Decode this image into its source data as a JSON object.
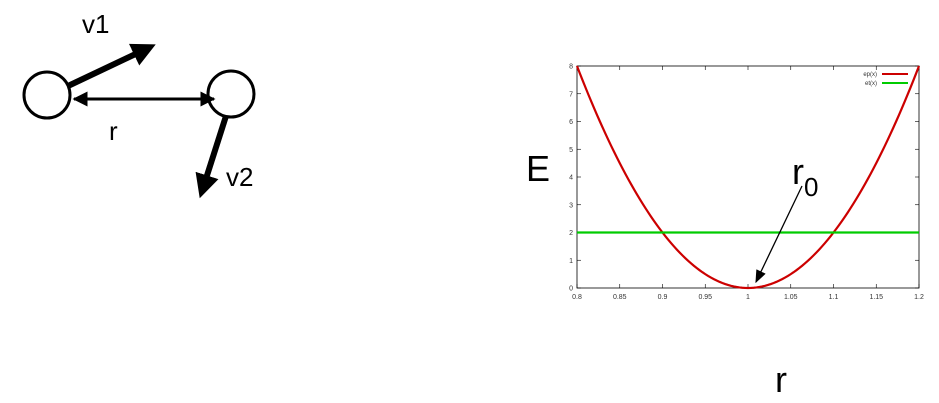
{
  "diagram": {
    "v1_label": "v1",
    "v2_label": "v2",
    "r_label": "r"
  },
  "chart_data": {
    "type": "line",
    "ylabel": "E",
    "xlabel": "r",
    "annotation": {
      "text_main": "r",
      "text_sub": "0",
      "target_x": 1.0,
      "target_y": 0.0
    },
    "xlim": [
      0.8,
      1.2
    ],
    "ylim": [
      0,
      8
    ],
    "xticks": [
      "0.8",
      "0.85",
      "0.9",
      "0.95",
      "1",
      "1.05",
      "1.1",
      "1.15",
      "1.2"
    ],
    "xtick_values": [
      0.8,
      0.85,
      0.9,
      0.95,
      1.0,
      1.05,
      1.1,
      1.15,
      1.2
    ],
    "yticks": [
      "0",
      "1",
      "2",
      "3",
      "4",
      "5",
      "6",
      "7",
      "8"
    ],
    "ytick_values": [
      0,
      1,
      2,
      3,
      4,
      5,
      6,
      7,
      8
    ],
    "grid": false,
    "legend_position": "top-right",
    "series": [
      {
        "name": "ep(x)",
        "color": "#cc0000",
        "kind": "parabola",
        "center": 1.0,
        "coef": 200,
        "x": [
          0.8,
          0.85,
          0.9,
          0.95,
          1.0,
          1.05,
          1.1,
          1.15,
          1.2
        ],
        "values": [
          8,
          4.5,
          2,
          0.5,
          0,
          0.5,
          2,
          4.5,
          8
        ]
      },
      {
        "name": "et(x)",
        "color": "#00cc00",
        "kind": "constant",
        "x": [
          0.8,
          1.2
        ],
        "values": [
          2,
          2
        ]
      }
    ]
  }
}
